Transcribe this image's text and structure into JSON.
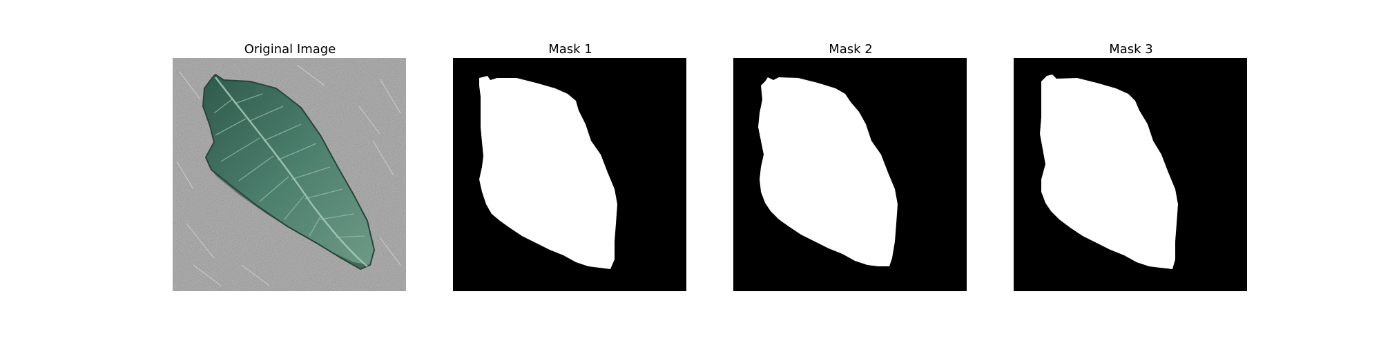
{
  "figure": {
    "panels": [
      {
        "title": "Original Image"
      },
      {
        "title": "Mask 1"
      },
      {
        "title": "Mask 2"
      },
      {
        "title": "Mask 3"
      }
    ]
  },
  "colors": {
    "mask_background": "#000000",
    "mask_foreground": "#ffffff",
    "leaf_green": "#4a7a68",
    "surface_gray": "#a6a6a6"
  }
}
